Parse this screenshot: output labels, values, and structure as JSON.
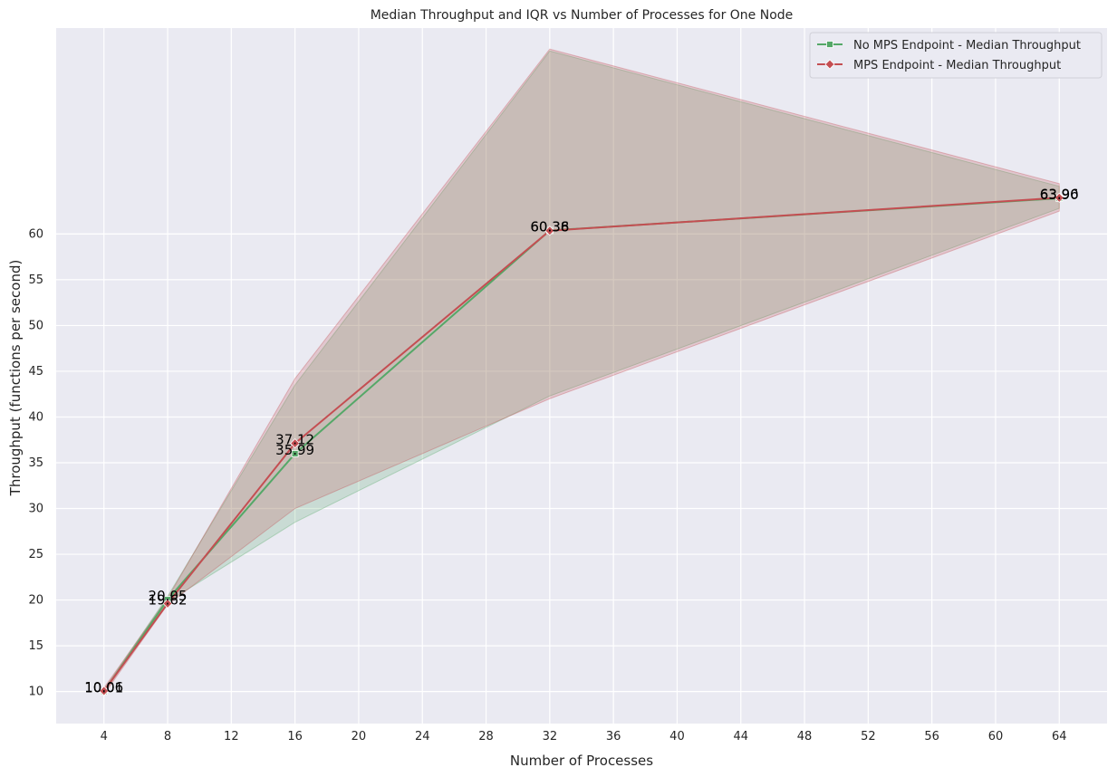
{
  "chart_data": {
    "type": "line",
    "title": "Median Throughput and IQR vs Number of Processes for One Node",
    "xlabel": "Number of Processes",
    "ylabel": "Throughput (functions per second)",
    "x": [
      4,
      8,
      16,
      32,
      64
    ],
    "xlim": [
      1,
      67
    ],
    "ylim": [
      6.5,
      82.5
    ],
    "xticks": [
      4,
      8,
      12,
      16,
      20,
      24,
      28,
      32,
      36,
      40,
      44,
      48,
      52,
      56,
      60,
      64
    ],
    "yticks": [
      10,
      15,
      20,
      25,
      30,
      35,
      40,
      45,
      50,
      55,
      60
    ],
    "grid": true,
    "legend_position": "top-right",
    "background": "#eaeaf2",
    "series": [
      {
        "name": "No MPS Endpoint - Median Throughput",
        "color": "#55a868",
        "marker": "square",
        "values": [
          10.01,
          20.05,
          35.99,
          60.38,
          63.9
        ],
        "labels": [
          "10.01",
          "20.05",
          "35.99",
          "60.38",
          "63.90"
        ],
        "iqr_low": [
          9.9,
          19.8,
          28.5,
          42.3,
          62.8
        ],
        "iqr_high": [
          10.2,
          20.4,
          43.5,
          80.0,
          65.2
        ]
      },
      {
        "name": "MPS Endpoint - Median Throughput",
        "color": "#c44e52",
        "marker": "diamond",
        "values": [
          10.06,
          19.62,
          37.12,
          60.36,
          63.96
        ],
        "labels": [
          "10.06",
          "19.62",
          "37.12",
          "60.36",
          "63.96"
        ],
        "iqr_low": [
          9.7,
          19.5,
          30.0,
          42.0,
          62.5
        ],
        "iqr_high": [
          10.4,
          20.2,
          44.2,
          80.2,
          65.5
        ]
      }
    ]
  }
}
